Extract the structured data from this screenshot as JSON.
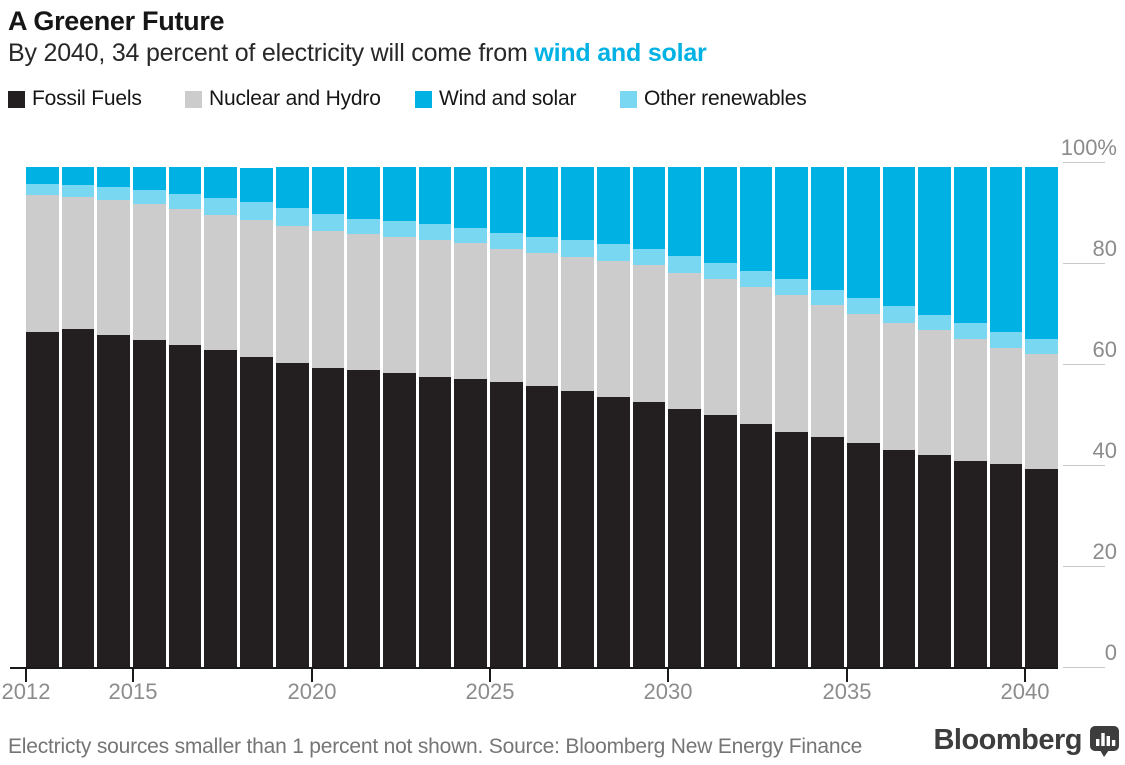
{
  "header": {
    "title": "A Greener Future",
    "subtitle_prefix": "By 2040, 34 percent of electricity will come from ",
    "subtitle_highlight": "wind and solar"
  },
  "legend": {
    "items": [
      {
        "label": "Fossil Fuels",
        "color": "#231f20"
      },
      {
        "label": "Nuclear and Hydro",
        "color": "#cccccc"
      },
      {
        "label": "Wind and solar",
        "color": "#00b2e3"
      },
      {
        "label": "Other renewables",
        "color": "#79d7f1"
      }
    ]
  },
  "chart_data": {
    "type": "bar",
    "stacked": true,
    "unit": "percent of electricity generation",
    "title": "A Greener Future",
    "legend_position": "top",
    "grid": "right-side tick marks only, no gridlines",
    "categories": [
      2012,
      2013,
      2014,
      2015,
      2016,
      2017,
      2018,
      2019,
      2020,
      2021,
      2022,
      2023,
      2024,
      2025,
      2026,
      2027,
      2028,
      2029,
      2030,
      2031,
      2032,
      2033,
      2034,
      2035,
      2036,
      2037,
      2038,
      2039,
      2040
    ],
    "series": [
      {
        "key": "fossil",
        "name": "Fossil Fuels",
        "color": "#231f20",
        "values": [
          66.6,
          67.1,
          65.9,
          65.0,
          64.0,
          63.0,
          61.5,
          60.5,
          59.5,
          59.0,
          58.5,
          57.7,
          57.2,
          56.7,
          55.8,
          54.9,
          53.7,
          52.6,
          51.2,
          50.1,
          48.3,
          46.8,
          45.7,
          44.5,
          43.2,
          42.2,
          41.0,
          40.4,
          39.5
        ]
      },
      {
        "key": "nuclear_hydro",
        "name": "Nuclear and Hydro",
        "color": "#cccccc",
        "values": [
          27.1,
          26.2,
          26.8,
          26.9,
          26.9,
          26.8,
          27.3,
          27.1,
          27.1,
          26.9,
          26.9,
          27.1,
          26.9,
          26.3,
          26.3,
          26.6,
          27.0,
          27.2,
          27.1,
          26.9,
          27.1,
          27.1,
          26.1,
          25.6,
          25.2,
          24.7,
          24.1,
          23.0,
          22.7
        ]
      },
      {
        "key": "wind_solar",
        "name": "Wind and solar",
        "color": "#00b2e3",
        "values": [
          3.3,
          3.6,
          3.9,
          4.5,
          5.3,
          6.2,
          6.8,
          8.2,
          9.4,
          10.3,
          10.7,
          11.2,
          12.0,
          13.1,
          13.9,
          14.5,
          15.3,
          16.3,
          17.7,
          19.0,
          20.5,
          22.1,
          24.4,
          26.0,
          27.6,
          29.2,
          30.9,
          32.7,
          34.0
        ]
      },
      {
        "key": "other_renewables",
        "name": "Other renewables",
        "color": "#79d7f1",
        "values": [
          2.2,
          2.3,
          2.6,
          2.8,
          3.0,
          3.2,
          3.4,
          3.4,
          3.2,
          3.0,
          3.1,
          3.2,
          3.1,
          3.1,
          3.2,
          3.2,
          3.2,
          3.1,
          3.2,
          3.2,
          3.3,
          3.2,
          3.0,
          3.1,
          3.2,
          3.1,
          3.2,
          3.1,
          3.0
        ]
      }
    ],
    "y_axis": {
      "range": [
        0,
        100
      ],
      "ticks": [
        {
          "label": "100%",
          "value": 100
        },
        {
          "label": "80",
          "value": 80
        },
        {
          "label": "60",
          "value": 60
        },
        {
          "label": "40",
          "value": 40
        },
        {
          "label": "20",
          "value": 20
        },
        {
          "label": "0",
          "value": 0
        }
      ]
    },
    "x_axis": {
      "tick_years": [
        2012,
        2015,
        2020,
        2025,
        2030,
        2035,
        2040
      ]
    }
  },
  "footer": {
    "note": "Electricty sources smaller than 1 percent not shown. Source: Bloomberg New Energy Finance",
    "brand": "Bloomberg"
  },
  "colors": {
    "accent_text": "#00b2e3",
    "axis_label": "#8c8c8c",
    "tick_line": "#c9c9c9",
    "axis_line": "#1a1a1a",
    "footer_text": "#757575",
    "brand": "#3d3d3d"
  }
}
